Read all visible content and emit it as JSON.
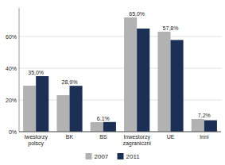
{
  "chart_data": {
    "type": "bar",
    "categories": [
      "Iwestorzy\npolscy",
      "BK",
      "BS",
      "Inwestorzy\nzagraniczni",
      "UE",
      "Inni"
    ],
    "series": [
      {
        "name": "2007",
        "color": "#b2b2b2",
        "values": [
          29.0,
          23.0,
          6.0,
          72.0,
          63.0,
          8.0
        ]
      },
      {
        "name": "2011",
        "color": "#1c2f55",
        "values": [
          35.0,
          28.9,
          6.1,
          65.0,
          57.8,
          7.2
        ],
        "data_labels": true,
        "value_labels": [
          "35,0%",
          "28,9%",
          "6,1%",
          "65,0%",
          "57,8%",
          "7,2%"
        ]
      }
    ],
    "ylim": [
      0,
      78
    ],
    "yticks": [
      {
        "value": 0,
        "label": "0%"
      },
      {
        "value": 20,
        "label": "20%"
      },
      {
        "value": 40,
        "label": "40%"
      },
      {
        "value": 60,
        "label": "60%"
      }
    ],
    "grid": true,
    "legend": "bottom"
  }
}
